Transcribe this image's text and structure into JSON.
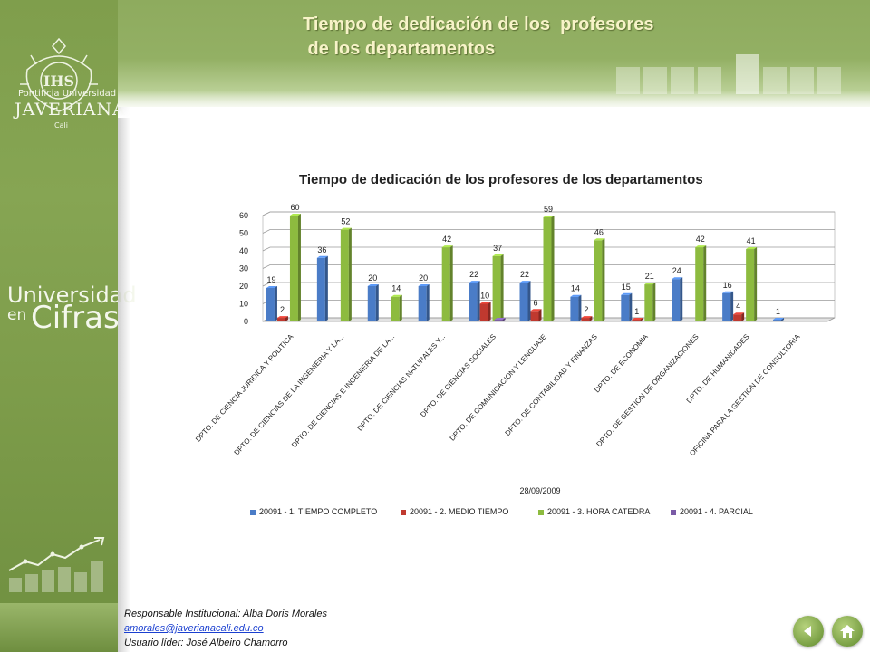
{
  "sidebar": {
    "logo_line1": "Pontificia Universidad",
    "logo_line2": "JAVERIANA",
    "logo_line3": "Cali",
    "brand_line1": "Universidad",
    "brand_line2": "en",
    "brand_line3": "Cifras",
    "logo_icon": "university-crest-icon",
    "graph_icon": "growth-chart-icon"
  },
  "header": {
    "title": "Tiempo de dedicación de los  profesores\n de los departamentos",
    "title_color": "#f7f3c8"
  },
  "chart_data": {
    "type": "bar",
    "title": "Tiempo de dedicación de los profesores de los departamentos",
    "xlabel": "28/09/2009",
    "ylabel": "",
    "ylim": [
      0,
      60
    ],
    "yticks": [
      0,
      10,
      20,
      30,
      40,
      50,
      60
    ],
    "legend_position": "bottom",
    "grid": true,
    "categories": [
      "DPTO. DE CIENCIA JURIDICA Y POLITICA",
      "DPTO. DE CIENCIAS DE LA INGENIERIA Y LA...",
      "DPTO. DE CIENCIAS E INGENIERIA DE LA...",
      "DPTO. DE CIENCIAS NATURALES Y...",
      "DPTO. DE CIENCIAS SOCIALES",
      "DPTO. DE COMUNICACION Y LENGUAJE",
      "DPTO. DE CONTABILIDAD Y FINANZAS",
      "DPTO. DE ECONOMIA",
      "DPTO. DE GESTION DE ORGANIZACIONES",
      "DPTO. DE HUMANIDADES",
      "OFICINA PARA LA GESTION DE CONSULTORIA"
    ],
    "series": [
      {
        "name": "20091 - 1. TIEMPO COMPLETO",
        "color": "#4a7cc7",
        "values": [
          19,
          36,
          20,
          20,
          22,
          22,
          14,
          15,
          24,
          16,
          1
        ]
      },
      {
        "name": "20091 - 2. MEDIO TIEMPO",
        "color": "#c0392f",
        "values": [
          2,
          null,
          null,
          null,
          10,
          6,
          2,
          1,
          null,
          4,
          null
        ]
      },
      {
        "name": "20091 - 3. HORA CATEDRA",
        "color": "#8dbb3f",
        "values": [
          60,
          52,
          14,
          42,
          37,
          59,
          46,
          21,
          42,
          41,
          null
        ]
      },
      {
        "name": "20091 - 4. PARCIAL",
        "color": "#7a5aa6",
        "values": [
          null,
          null,
          null,
          null,
          1,
          null,
          null,
          null,
          null,
          null,
          null
        ]
      }
    ],
    "data_labels_shown": [
      [
        true,
        true,
        true,
        true,
        true,
        true,
        true,
        true,
        true,
        true,
        true
      ],
      [
        true,
        false,
        false,
        false,
        true,
        true,
        true,
        true,
        false,
        true,
        false
      ],
      [
        true,
        true,
        true,
        true,
        true,
        true,
        true,
        true,
        true,
        true,
        false
      ],
      [
        false,
        false,
        false,
        false,
        false,
        false,
        false,
        false,
        false,
        false,
        false
      ]
    ]
  },
  "footer": {
    "responsible": "Responsable Institucional: Alba Doris Morales",
    "email": "amorales@javerianacali.edu.co",
    "leader": "Usuario líder: José Albeiro Chamorro"
  },
  "nav": {
    "back_icon": "back-arrow-icon",
    "home_icon": "home-icon"
  }
}
